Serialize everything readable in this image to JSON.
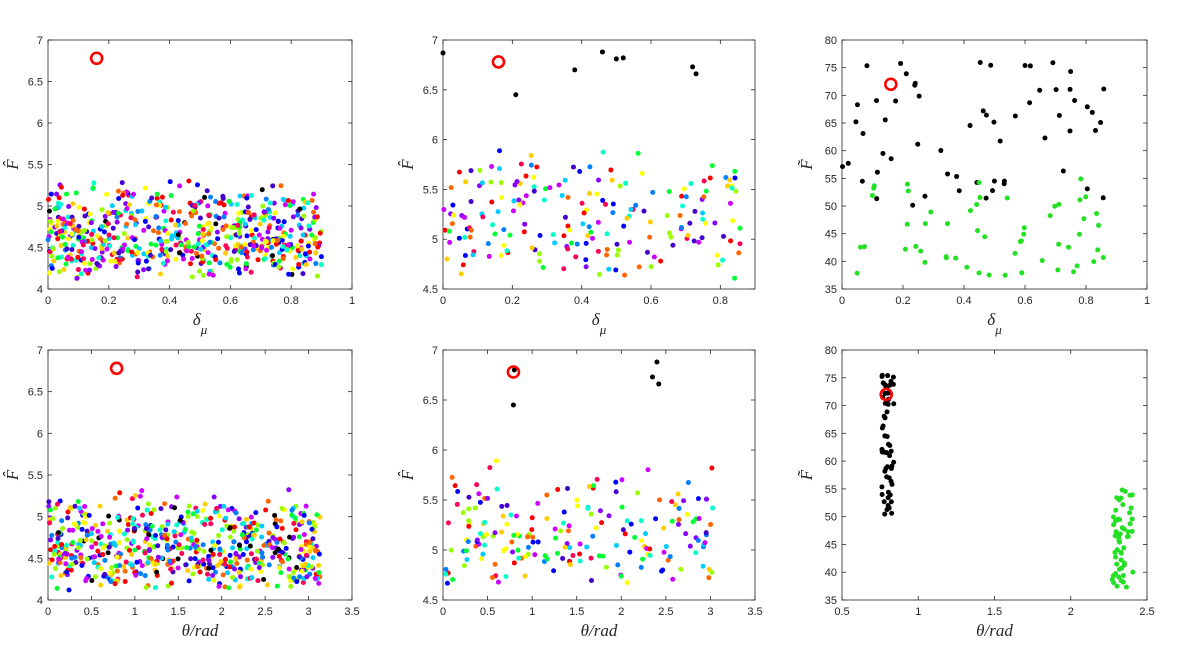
{
  "chart_data": [
    {
      "id": "p1",
      "type": "scatter",
      "xlabel_main": "δ",
      "xlabel_sub": "μ",
      "ylabel": "F̂",
      "xlim": [
        0,
        1
      ],
      "ylim": [
        4,
        7
      ],
      "xticks": [
        "0",
        "0.2",
        "0.4",
        "0.6",
        "0.8",
        "1"
      ],
      "yticks": [
        "4",
        "4.5",
        "5",
        "5.5",
        "6",
        "6.5",
        "7"
      ],
      "marker": {
        "x": 0.16,
        "y": 6.78
      },
      "cloud": {
        "n": 650,
        "xrange": [
          0,
          0.9
        ],
        "ymin": 4.1,
        "ymode": 4.5,
        "ymax": 5.35,
        "black_fraction": 0.03
      },
      "highlight": []
    },
    {
      "id": "p2",
      "type": "scatter",
      "xlabel_main": "δ",
      "xlabel_sub": "μ",
      "ylabel": "F̂",
      "xlim": [
        0,
        0.9
      ],
      "ylim": [
        4.5,
        7
      ],
      "xticks": [
        "0",
        "0.2",
        "0.4",
        "0.6",
        "0.8"
      ],
      "yticks": [
        "4.5",
        "5",
        "5.5",
        "6",
        "6.5",
        "7"
      ],
      "marker": {
        "x": 0.16,
        "y": 6.78
      },
      "cloud": {
        "n": 200,
        "xrange": [
          0,
          0.88
        ],
        "ymin": 4.55,
        "ymode": 5.0,
        "ymax": 5.97,
        "black_fraction": 0
      },
      "highlight": [
        {
          "x": 0.0,
          "y": 6.87
        },
        {
          "x": 0.21,
          "y": 6.45
        },
        {
          "x": 0.38,
          "y": 6.7
        },
        {
          "x": 0.46,
          "y": 6.88
        },
        {
          "x": 0.5,
          "y": 6.81
        },
        {
          "x": 0.52,
          "y": 6.82
        },
        {
          "x": 0.72,
          "y": 6.73
        },
        {
          "x": 0.73,
          "y": 6.66
        }
      ]
    },
    {
      "id": "p3",
      "type": "scatter",
      "xlabel_main": "δ",
      "xlabel_sub": "μ",
      "ylabel": "F̃",
      "xlim": [
        0,
        1
      ],
      "ylim": [
        35,
        80
      ],
      "xticks": [
        "0",
        "0.2",
        "0.4",
        "0.6",
        "0.8",
        "1"
      ],
      "yticks": [
        "35",
        "40",
        "45",
        "50",
        "55",
        "60",
        "65",
        "70",
        "75",
        "80"
      ],
      "marker": {
        "x": 0.16,
        "y": 72
      },
      "series": [
        {
          "name": "black",
          "color": "#000000",
          "n": 60,
          "xrange": [
            0,
            0.86
          ],
          "yrange": [
            50,
            76
          ]
        },
        {
          "name": "green",
          "color": "#22e022",
          "n": 55,
          "xrange": [
            0,
            0.86
          ],
          "yrange": [
            37,
            55
          ]
        }
      ],
      "highlight": []
    },
    {
      "id": "p4",
      "type": "scatter",
      "xlabel_main": "θ/rad",
      "xlabel_sub": "",
      "ylabel": "F̂",
      "xlim": [
        0,
        3.5
      ],
      "ylim": [
        4,
        7
      ],
      "xticks": [
        "0",
        "0.5",
        "1",
        "1.5",
        "2",
        "2.5",
        "3",
        "3.5"
      ],
      "yticks": [
        "4",
        "4.5",
        "5",
        "5.5",
        "6",
        "6.5",
        "7"
      ],
      "marker": {
        "x": 0.79,
        "y": 6.78
      },
      "cloud": {
        "n": 650,
        "xrange": [
          0,
          3.14
        ],
        "ymin": 4.1,
        "ymode": 4.5,
        "ymax": 5.35,
        "black_fraction": 0.03
      },
      "highlight": []
    },
    {
      "id": "p5",
      "type": "scatter",
      "xlabel_main": "θ/rad",
      "xlabel_sub": "",
      "ylabel": "F̂",
      "xlim": [
        0,
        3.5
      ],
      "ylim": [
        4.5,
        7
      ],
      "xticks": [
        "0",
        "0.5",
        "1",
        "1.5",
        "2",
        "2.5",
        "3",
        "3.5"
      ],
      "yticks": [
        "4.5",
        "5",
        "5.5",
        "6",
        "6.5",
        "7"
      ],
      "marker": {
        "x": 0.79,
        "y": 6.78
      },
      "cloud": {
        "n": 200,
        "xrange": [
          0,
          3.05
        ],
        "ymin": 4.55,
        "ymode": 5.0,
        "ymax": 5.97,
        "black_fraction": 0
      },
      "highlight": [
        {
          "x": 0.79,
          "y": 6.45
        },
        {
          "x": 0.8,
          "y": 6.8
        },
        {
          "x": 2.35,
          "y": 6.73
        },
        {
          "x": 2.4,
          "y": 6.88
        },
        {
          "x": 2.42,
          "y": 6.66
        }
      ]
    },
    {
      "id": "p6",
      "type": "scatter",
      "xlabel_main": "θ/rad",
      "xlabel_sub": "",
      "ylabel": "F̃",
      "xlim": [
        0.5,
        2.5
      ],
      "ylim": [
        35,
        80
      ],
      "xticks": [
        "0.5",
        "1",
        "1.5",
        "2",
        "2.5"
      ],
      "yticks": [
        "35",
        "40",
        "45",
        "50",
        "55",
        "60",
        "65",
        "70",
        "75",
        "80"
      ],
      "marker": {
        "x": 0.79,
        "y": 72
      },
      "series": [
        {
          "name": "black",
          "color": "#000000",
          "n": 60,
          "xrange": [
            0.76,
            0.84
          ],
          "yrange": [
            50,
            76
          ]
        },
        {
          "name": "green",
          "color": "#22e022",
          "n": 55,
          "xrange": [
            2.27,
            2.41
          ],
          "yrange": [
            37,
            55
          ]
        }
      ],
      "highlight": []
    }
  ],
  "colors": {
    "palette": [
      "#ff0000",
      "#ff6600",
      "#ffcc00",
      "#ffff00",
      "#99ff00",
      "#00ff33",
      "#00ffcc",
      "#00ccff",
      "#0080ff",
      "#0000ff",
      "#4400cc",
      "#8800ff",
      "#cc00ff",
      "#ff0055"
    ],
    "highlight": "#000000",
    "marker": "#ff0000"
  }
}
